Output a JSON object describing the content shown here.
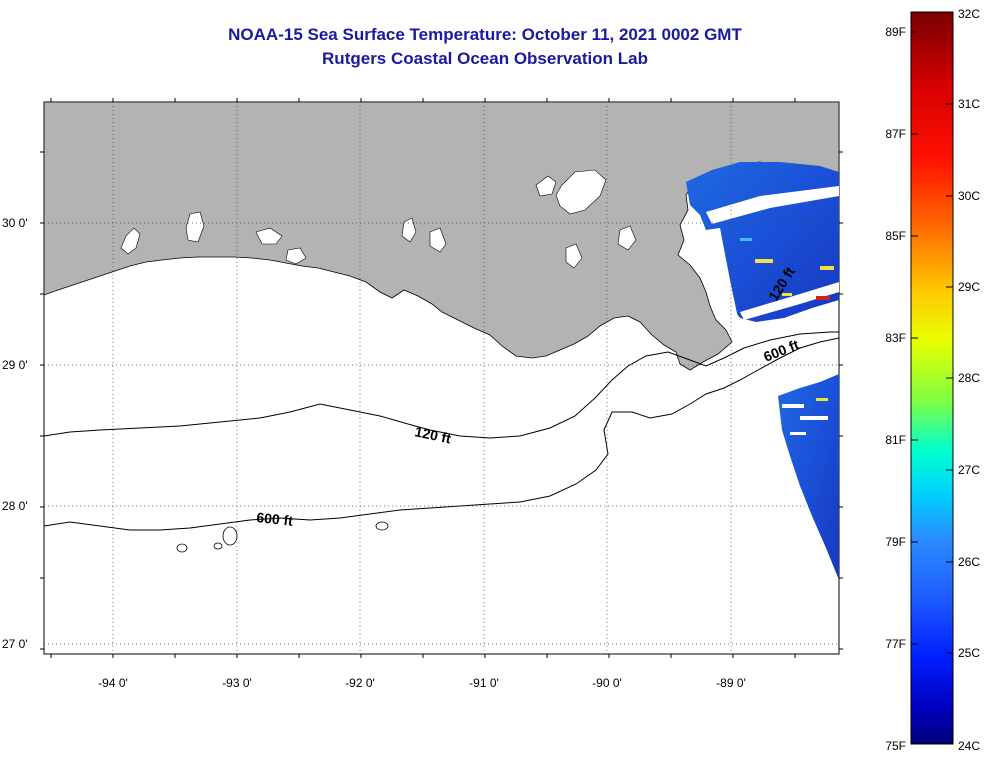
{
  "header": {
    "title": "NOAA-15 Sea Surface Temperature:  October 11, 2021 0002 GMT",
    "subtitle": "Rutgers Coastal Ocean Observation Lab"
  },
  "map": {
    "lon_labels": [
      "-94 0'",
      "-93 0'",
      "-92 0'",
      "-91 0'",
      "-90 0'",
      "-89 0'"
    ],
    "lat_labels": [
      "30 0'",
      "29 0'",
      "28 0'",
      "27 0'"
    ],
    "contour_labels": {
      "c120": "120 ft",
      "c600w": "600 ft",
      "c600e": "600 ft",
      "c120e": "120 ft"
    },
    "colors": {
      "land": "#b3b3b3",
      "water": "#ffffff",
      "contour": "#000000"
    }
  },
  "colorbar": {
    "fahrenheit_labels": [
      "89F",
      "87F",
      "85F",
      "83F",
      "81F",
      "79F",
      "77F",
      "75F"
    ],
    "celsius_labels": [
      "32C",
      "31C",
      "30C",
      "29C",
      "28C",
      "27C",
      "26C",
      "25C",
      "24C"
    ],
    "stops": [
      "#7a0000",
      "#d40000",
      "#ff0000",
      "#ff7000",
      "#ffc800",
      "#e8ff00",
      "#80ff40",
      "#00ffd0",
      "#00d0ff",
      "#2a8cff",
      "#0030ff",
      "#0000c0",
      "#00007a"
    ]
  }
}
